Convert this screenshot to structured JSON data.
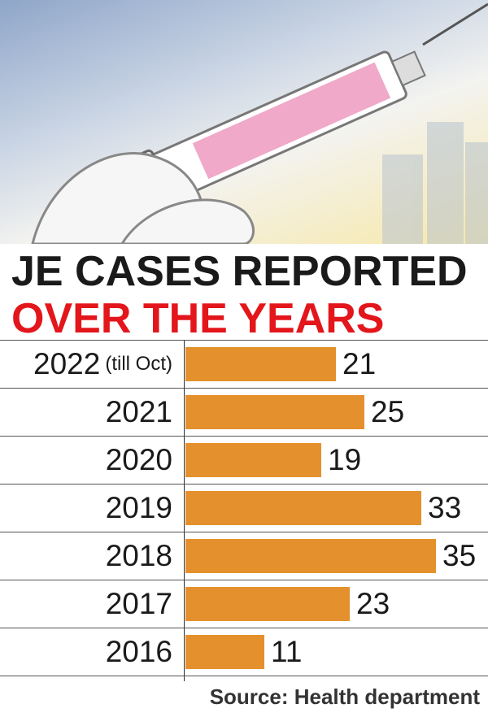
{
  "header": {
    "title_line1": "JE CASES REPORTED",
    "title_line2": "OVER THE YEARS"
  },
  "colors": {
    "bar": "#e4912d",
    "title_line1": "#1a1a1a",
    "title_line2": "#e3161c"
  },
  "chart_data": {
    "type": "bar",
    "orientation": "horizontal",
    "title": "JE CASES REPORTED OVER THE YEARS",
    "categories": [
      "2022",
      "2021",
      "2020",
      "2019",
      "2018",
      "2017",
      "2016"
    ],
    "category_notes": [
      "(till Oct)",
      "",
      "",
      "",
      "",
      "",
      ""
    ],
    "values": [
      21,
      25,
      19,
      33,
      35,
      23,
      11
    ],
    "xlim": [
      0,
      35
    ],
    "grid": false,
    "legend": "none",
    "source": "Source: Health department"
  }
}
